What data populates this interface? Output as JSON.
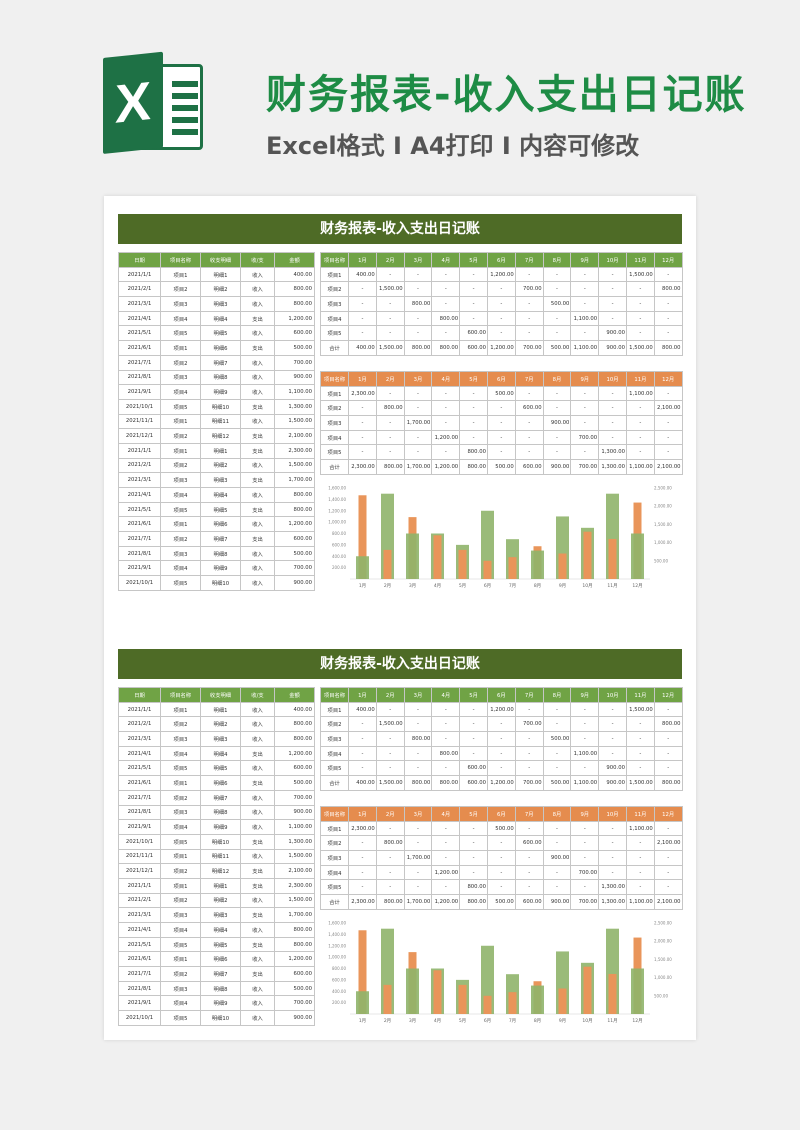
{
  "header": {
    "title": "财务报表-收入支出日记账",
    "subtitle": "Excel格式 I A4打印 I 内容可修改",
    "logo_letter": "X"
  },
  "report": {
    "title": "财务报表-收入支出日记账",
    "ledger_columns": [
      "日期",
      "项目名称",
      "收支明细",
      "收/支",
      "金额"
    ],
    "ledger_rows": [
      [
        "2021/1/1",
        "项目1",
        "明细1",
        "收入",
        "400.00"
      ],
      [
        "2021/2/1",
        "项目2",
        "明细2",
        "收入",
        "800.00"
      ],
      [
        "2021/3/1",
        "项目3",
        "明细3",
        "收入",
        "800.00"
      ],
      [
        "2021/4/1",
        "项目4",
        "明细4",
        "支出",
        "1,200.00"
      ],
      [
        "2021/5/1",
        "项目5",
        "明细5",
        "收入",
        "600.00"
      ],
      [
        "2021/6/1",
        "项目1",
        "明细6",
        "支出",
        "500.00"
      ],
      [
        "2021/7/1",
        "项目2",
        "明细7",
        "收入",
        "700.00"
      ],
      [
        "2021/8/1",
        "项目3",
        "明细8",
        "收入",
        "900.00"
      ],
      [
        "2021/9/1",
        "项目4",
        "明细9",
        "收入",
        "1,100.00"
      ],
      [
        "2021/10/1",
        "项目5",
        "明细10",
        "支出",
        "1,300.00"
      ],
      [
        "2021/11/1",
        "项目1",
        "明细11",
        "收入",
        "1,500.00"
      ],
      [
        "2021/12/1",
        "项目2",
        "明细12",
        "支出",
        "2,100.00"
      ],
      [
        "2021/1/1",
        "项目1",
        "明细1",
        "支出",
        "2,300.00"
      ],
      [
        "2021/2/1",
        "项目2",
        "明细2",
        "收入",
        "1,500.00"
      ],
      [
        "2021/3/1",
        "项目3",
        "明细3",
        "支出",
        "1,700.00"
      ],
      [
        "2021/4/1",
        "项目4",
        "明细4",
        "收入",
        "800.00"
      ],
      [
        "2021/5/1",
        "项目5",
        "明细5",
        "支出",
        "800.00"
      ],
      [
        "2021/6/1",
        "项目1",
        "明细6",
        "收入",
        "1,200.00"
      ],
      [
        "2021/7/1",
        "项目2",
        "明细7",
        "支出",
        "600.00"
      ],
      [
        "2021/8/1",
        "项目3",
        "明细8",
        "收入",
        "500.00"
      ],
      [
        "2021/9/1",
        "项目4",
        "明细9",
        "收入",
        "700.00"
      ],
      [
        "2021/10/1",
        "项目5",
        "明细10",
        "收入",
        "900.00"
      ]
    ],
    "income_table": {
      "columns": [
        "项目名称",
        "1月",
        "2月",
        "3月",
        "4月",
        "5月",
        "6月",
        "7月",
        "8月",
        "9月",
        "10月",
        "11月",
        "12月"
      ],
      "rows": [
        [
          "项目1",
          "400.00",
          "-",
          "-",
          "-",
          "-",
          "1,200.00",
          "-",
          "-",
          "-",
          "-",
          "1,500.00",
          "-"
        ],
        [
          "项目2",
          "-",
          "1,500.00",
          "-",
          "-",
          "-",
          "-",
          "700.00",
          "-",
          "-",
          "-",
          "-",
          "800.00"
        ],
        [
          "项目3",
          "-",
          "-",
          "800.00",
          "-",
          "-",
          "-",
          "-",
          "500.00",
          "-",
          "-",
          "-",
          "-"
        ],
        [
          "项目4",
          "-",
          "-",
          "-",
          "800.00",
          "-",
          "-",
          "-",
          "-",
          "1,100.00",
          "-",
          "-",
          "-"
        ],
        [
          "项目5",
          "-",
          "-",
          "-",
          "-",
          "600.00",
          "-",
          "-",
          "-",
          "-",
          "900.00",
          "-",
          "-"
        ],
        [
          "合计",
          "400.00",
          "1,500.00",
          "800.00",
          "800.00",
          "600.00",
          "1,200.00",
          "700.00",
          "500.00",
          "1,100.00",
          "900.00",
          "1,500.00",
          "800.00"
        ]
      ]
    },
    "expense_table": {
      "columns": [
        "项目名称",
        "1月",
        "2月",
        "3月",
        "4月",
        "5月",
        "6月",
        "7月",
        "8月",
        "9月",
        "10月",
        "11月",
        "12月"
      ],
      "rows": [
        [
          "项目1",
          "2,300.00",
          "-",
          "-",
          "-",
          "-",
          "500.00",
          "-",
          "-",
          "-",
          "-",
          "1,100.00",
          "-"
        ],
        [
          "项目2",
          "-",
          "800.00",
          "-",
          "-",
          "-",
          "-",
          "600.00",
          "-",
          "-",
          "-",
          "-",
          "2,100.00"
        ],
        [
          "项目3",
          "-",
          "-",
          "1,700.00",
          "-",
          "-",
          "-",
          "-",
          "900.00",
          "-",
          "-",
          "-",
          "-"
        ],
        [
          "项目4",
          "-",
          "-",
          "-",
          "1,200.00",
          "-",
          "-",
          "-",
          "-",
          "700.00",
          "-",
          "-",
          "-"
        ],
        [
          "项目5",
          "-",
          "-",
          "-",
          "-",
          "800.00",
          "-",
          "-",
          "-",
          "-",
          "1,300.00",
          "-",
          "-"
        ],
        [
          "合计",
          "2,300.00",
          "800.00",
          "1,700.00",
          "1,200.00",
          "800.00",
          "500.00",
          "600.00",
          "900.00",
          "700.00",
          "1,300.00",
          "1,100.00",
          "2,100.00"
        ]
      ]
    }
  },
  "chart_data": {
    "type": "bar",
    "categories": [
      "1月",
      "2月",
      "3月",
      "4月",
      "5月",
      "6月",
      "7月",
      "8月",
      "9月",
      "10月",
      "11月",
      "12月"
    ],
    "series": [
      {
        "values": [
          400,
          1500,
          800,
          800,
          600,
          1200,
          700,
          500,
          1100,
          900,
          1500,
          800
        ],
        "color": "#8fb46a"
      },
      {
        "values": [
          2300,
          800,
          1700,
          1200,
          800,
          500,
          600,
          900,
          700,
          1300,
          1100,
          2100
        ],
        "color": "#e9955a"
      }
    ],
    "left_ticks": [
      "200.00",
      "400.00",
      "600.00",
      "800.00",
      "1,000.00",
      "1,200.00",
      "1,400.00",
      "1,600.00"
    ],
    "right_ticks": [
      "500.00",
      "1,000.00",
      "1,500.00",
      "2,000.00",
      "2,500.00"
    ],
    "ylim_left": [
      0,
      1600
    ],
    "ylim_right": [
      0,
      2500
    ]
  }
}
